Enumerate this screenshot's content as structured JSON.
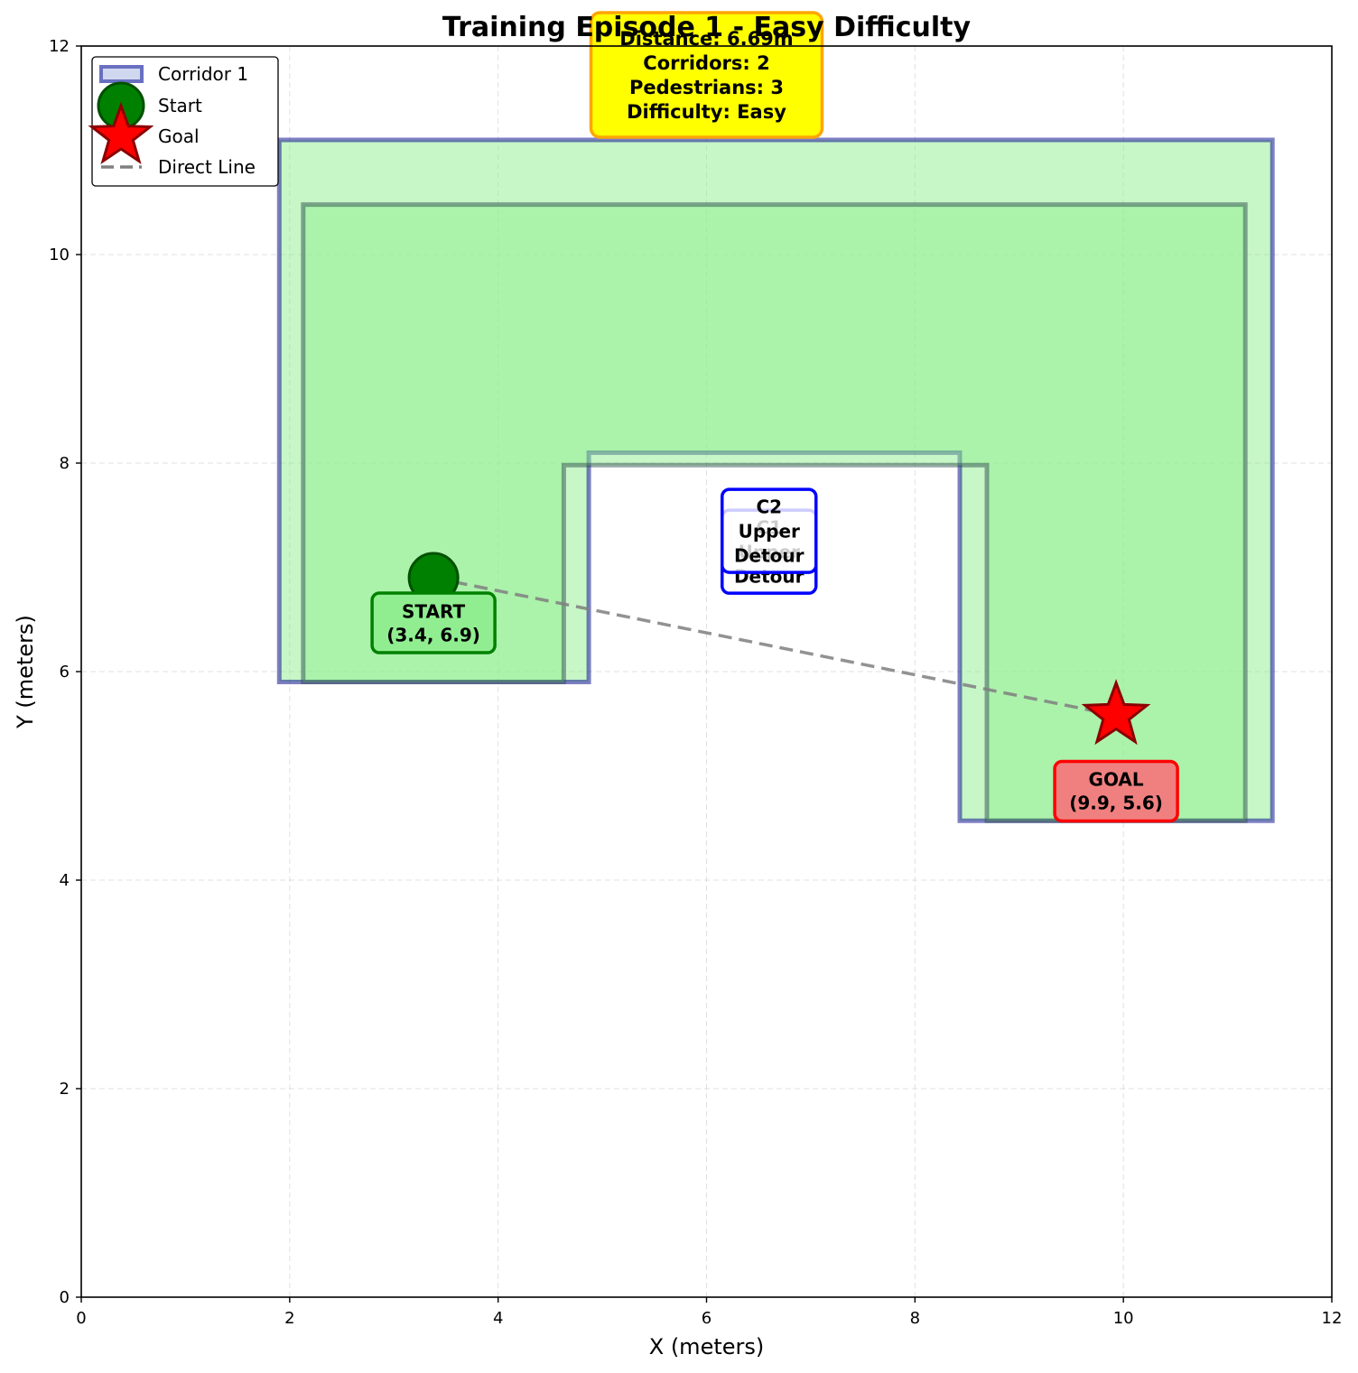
{
  "chart_data": {
    "type": "scatter",
    "title": "Training Episode 1 - Easy Difficulty",
    "xlabel": "X (meters)",
    "ylabel": "Y (meters)",
    "xlim": [
      0,
      12
    ],
    "ylim": [
      0,
      12
    ],
    "xticks": [
      0,
      2,
      4,
      6,
      8,
      10,
      12
    ],
    "yticks": [
      0,
      2,
      4,
      6,
      8,
      10,
      12
    ],
    "grid": true,
    "legend_position": "top-left",
    "legend": [
      {
        "label": "Corridor 1",
        "kind": "patch"
      },
      {
        "label": "Start",
        "kind": "circle"
      },
      {
        "label": "Goal",
        "kind": "star"
      },
      {
        "label": "Direct Line",
        "kind": "dashed-line"
      }
    ],
    "corridors": [
      {
        "name": "Corridor 1",
        "label_lines": [
          "C1",
          "Upper",
          "Detour"
        ],
        "label_at": [
          6.6,
          7.15
        ],
        "fill": "#90ee90",
        "fill_opacity": 0.5,
        "edge": "#00008b",
        "polygon": [
          [
            1.9,
            5.9
          ],
          [
            4.87,
            5.9
          ],
          [
            4.87,
            8.1
          ],
          [
            8.43,
            8.1
          ],
          [
            8.43,
            4.57
          ],
          [
            11.43,
            4.57
          ],
          [
            11.43,
            11.1
          ],
          [
            1.9,
            11.1
          ]
        ]
      },
      {
        "name": "C2",
        "label_lines": [
          "C2",
          "Upper",
          "Detour"
        ],
        "label_at": [
          6.6,
          7.35
        ],
        "fill": "#90ee90",
        "fill_opacity": 0.5,
        "edge": "#2f4f4f",
        "polygon": [
          [
            2.13,
            5.9
          ],
          [
            4.63,
            5.9
          ],
          [
            4.63,
            7.98
          ],
          [
            8.69,
            7.98
          ],
          [
            8.69,
            4.57
          ],
          [
            11.17,
            4.57
          ],
          [
            11.17,
            10.48
          ],
          [
            2.13,
            10.48
          ]
        ]
      }
    ],
    "start": {
      "x": 3.38,
      "y": 6.9,
      "label_lines": [
        "START",
        "(3.4, 6.9)"
      ],
      "color": "#008000"
    },
    "goal": {
      "x": 9.93,
      "y": 5.58,
      "label_lines": [
        "GOAL",
        "(9.9, 5.6)"
      ],
      "color": "#ff0000"
    },
    "direct_line": {
      "from": [
        3.38,
        6.9
      ],
      "to": [
        9.93,
        5.58
      ],
      "color": "#808080"
    },
    "info_box": {
      "lines": [
        "Distance: 6.69m",
        "Corridors: 2",
        "Pedestrians: 3",
        "Difficulty: Easy"
      ],
      "x": 6.0,
      "fill": "#ffff00",
      "edge": "#ffa500"
    }
  }
}
